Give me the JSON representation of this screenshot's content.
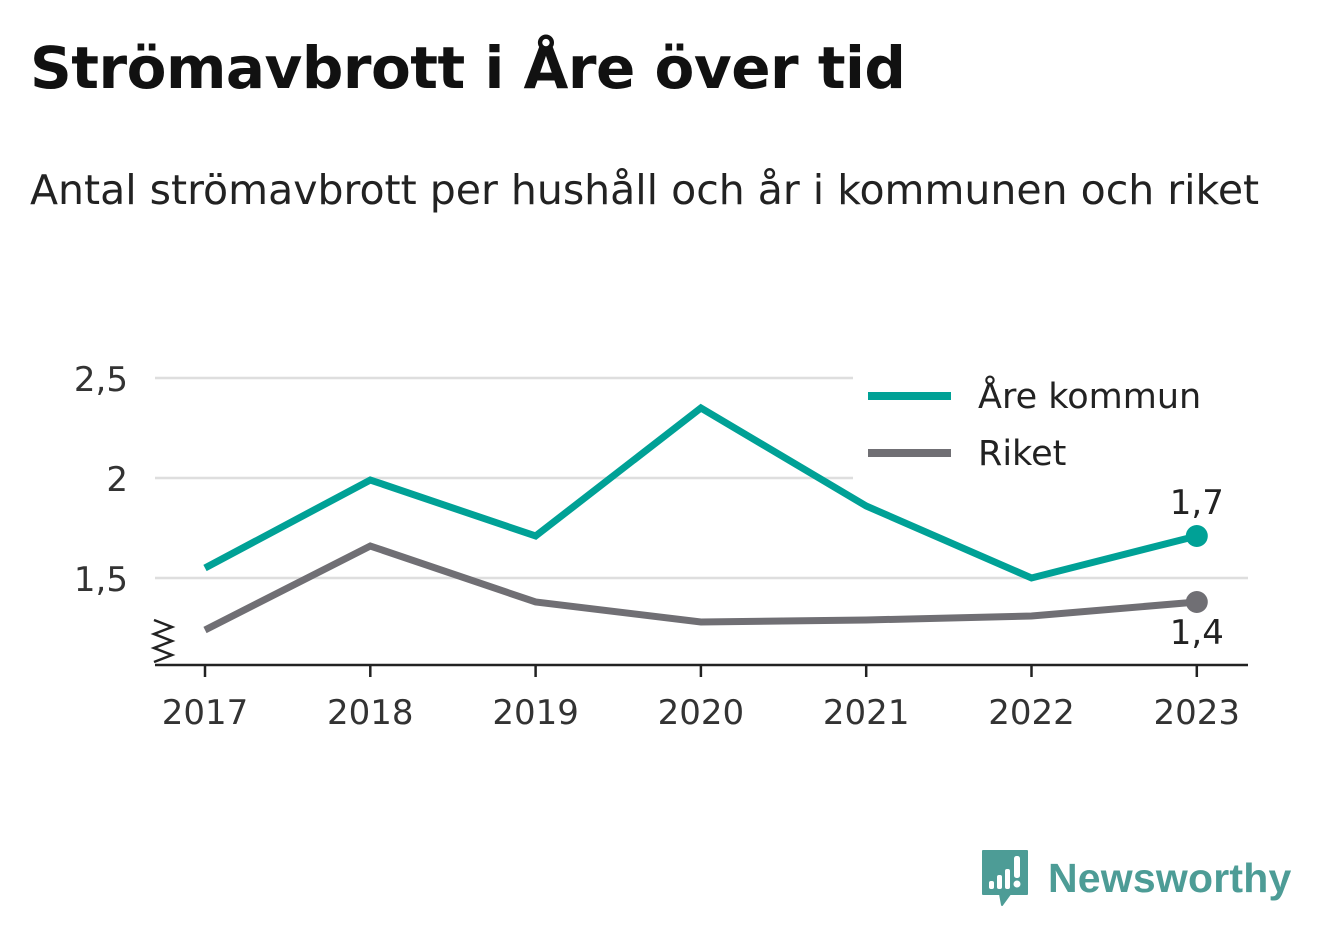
{
  "title": "Strömavbrott i Åre över tid",
  "subtitle": "Antal strömavbrott per hushåll och år i kommunen och riket",
  "brand": {
    "name": "Newsworthy",
    "icon": "newsworthy-logo-icon",
    "color": "#4d9c96"
  },
  "chart_data": {
    "type": "line",
    "x": [
      "2017",
      "2018",
      "2019",
      "2020",
      "2021",
      "2022",
      "2023"
    ],
    "series": [
      {
        "name": "Åre kommun",
        "color": "#00a196",
        "values": [
          1.55,
          1.99,
          1.71,
          2.35,
          1.86,
          1.5,
          1.71
        ]
      },
      {
        "name": "Riket",
        "color": "#706f74",
        "values": [
          1.24,
          1.66,
          1.38,
          1.28,
          1.29,
          1.31,
          1.38
        ]
      }
    ],
    "end_labels": [
      "1,7",
      "1,4"
    ],
    "y_ticks": [
      {
        "value": 1.5,
        "label": "1,5"
      },
      {
        "value": 2,
        "label": "2"
      },
      {
        "value": 2.5,
        "label": "2,5"
      }
    ],
    "ylim": [
      1.06,
      2.5
    ],
    "y_axis_break": true,
    "grid": true,
    "legend_position": "top-right"
  }
}
